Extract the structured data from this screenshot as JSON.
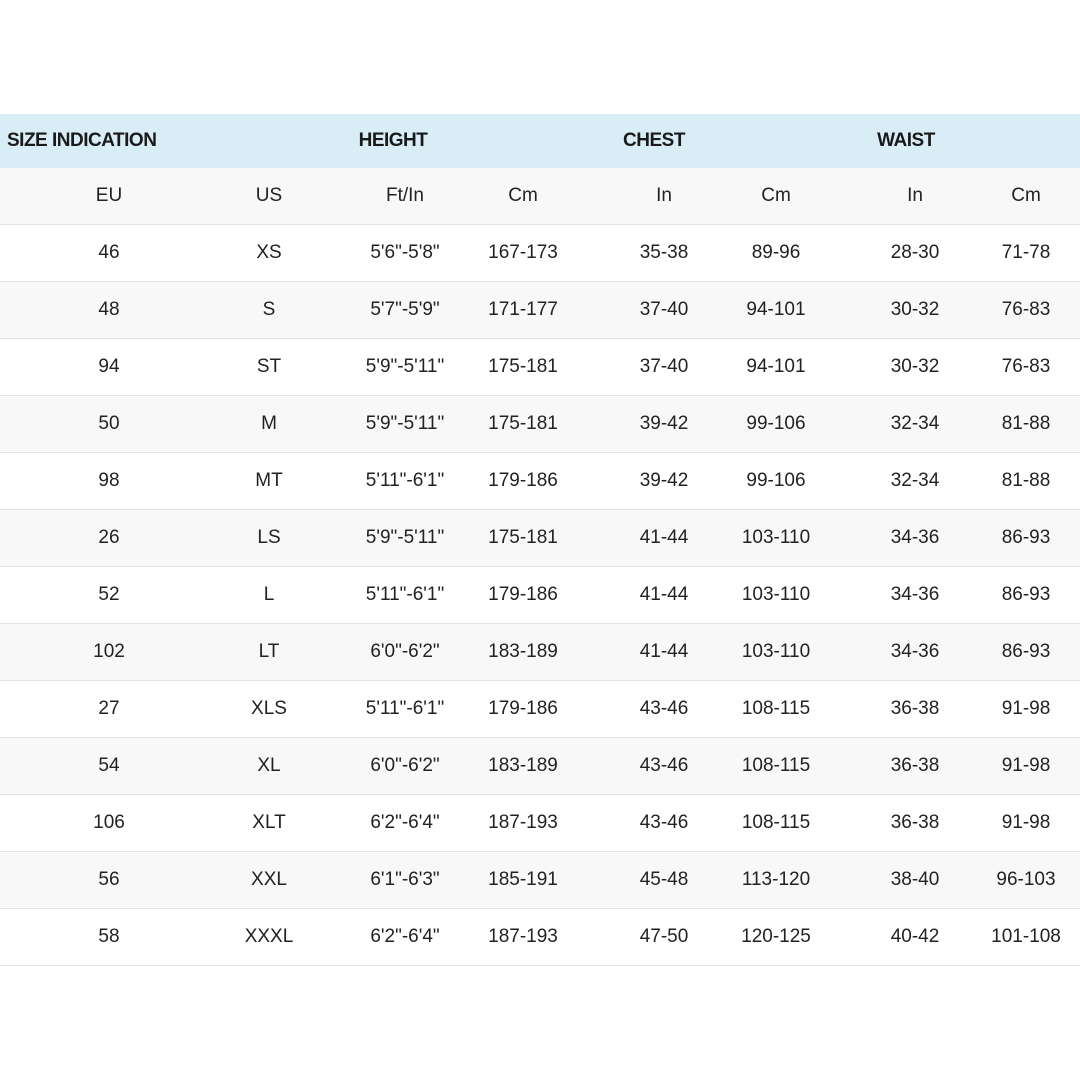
{
  "colors": {
    "header_bg": "#d9edf6",
    "alt_row_bg": "#f8f8f8"
  },
  "groups": [
    "SIZE INDICATION",
    "HEIGHT",
    "CHEST",
    "WAIST"
  ],
  "columns": [
    "EU",
    "US",
    "Ft/In",
    "Cm",
    "In",
    "Cm",
    "In",
    "Cm"
  ],
  "rows": [
    [
      "46",
      "XS",
      "5'6\"-5'8\"",
      "167-173",
      "35-38",
      "89-96",
      "28-30",
      "71-78"
    ],
    [
      "48",
      "S",
      "5'7\"-5'9\"",
      "171-177",
      "37-40",
      "94-101",
      "30-32",
      "76-83"
    ],
    [
      "94",
      "ST",
      "5'9\"-5'11\"",
      "175-181",
      "37-40",
      "94-101",
      "30-32",
      "76-83"
    ],
    [
      "50",
      "M",
      "5'9\"-5'11\"",
      "175-181",
      "39-42",
      "99-106",
      "32-34",
      "81-88"
    ],
    [
      "98",
      "MT",
      "5'11\"-6'1\"",
      "179-186",
      "39-42",
      "99-106",
      "32-34",
      "81-88"
    ],
    [
      "26",
      "LS",
      "5'9\"-5'11\"",
      "175-181",
      "41-44",
      "103-110",
      "34-36",
      "86-93"
    ],
    [
      "52",
      "L",
      "5'11\"-6'1\"",
      "179-186",
      "41-44",
      "103-110",
      "34-36",
      "86-93"
    ],
    [
      "102",
      "LT",
      "6'0\"-6'2\"",
      "183-189",
      "41-44",
      "103-110",
      "34-36",
      "86-93"
    ],
    [
      "27",
      "XLS",
      "5'11\"-6'1\"",
      "179-186",
      "43-46",
      "108-115",
      "36-38",
      "91-98"
    ],
    [
      "54",
      "XL",
      "6'0\"-6'2\"",
      "183-189",
      "43-46",
      "108-115",
      "36-38",
      "91-98"
    ],
    [
      "106",
      "XLT",
      "6'2\"-6'4\"",
      "187-193",
      "43-46",
      "108-115",
      "36-38",
      "91-98"
    ],
    [
      "56",
      "XXL",
      "6'1\"-6'3\"",
      "185-191",
      "45-48",
      "113-120",
      "38-40",
      "96-103"
    ],
    [
      "58",
      "XXXL",
      "6'2\"-6'4\"",
      "187-193",
      "47-50",
      "120-125",
      "40-42",
      "101-108"
    ]
  ]
}
